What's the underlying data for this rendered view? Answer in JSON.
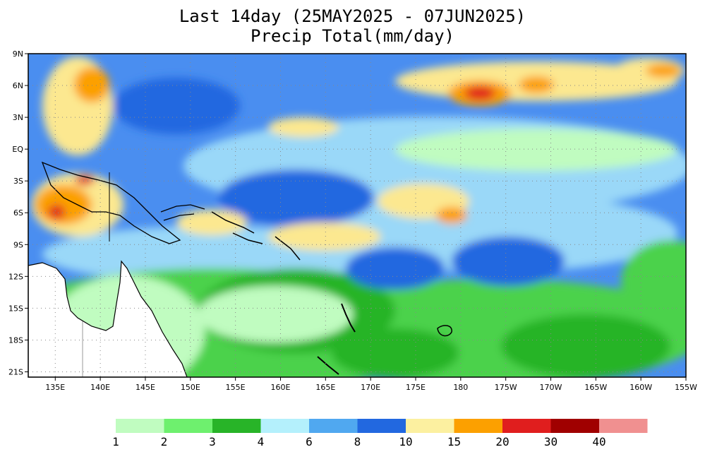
{
  "title_line1": "Last 14day (25MAY2025 - 07JUN2025)",
  "title_line2": "Precip Total(mm/day)",
  "map": {
    "lat_labels": [
      "9N",
      "6N",
      "3N",
      "EQ",
      "3S",
      "6S",
      "9S",
      "12S",
      "15S",
      "18S",
      "21S"
    ],
    "lon_labels": [
      "135E",
      "140E",
      "145E",
      "150E",
      "155E",
      "160E",
      "165E",
      "170E",
      "175E",
      "180",
      "175W",
      "170W",
      "165W",
      "160W",
      "155W"
    ],
    "background_color": "#4a8ef0"
  },
  "legend": {
    "labels": [
      "1",
      "2",
      "3",
      "4",
      "6",
      "8",
      "10",
      "15",
      "20",
      "30",
      "40"
    ],
    "colors": [
      "#c0fcc0",
      "#6ef06e",
      "#28b428",
      "#b4f0fc",
      "#50a8f0",
      "#2268e0",
      "#fcf0a0",
      "#fca000",
      "#e01e1e",
      "#a00000",
      "#f09090"
    ]
  }
}
